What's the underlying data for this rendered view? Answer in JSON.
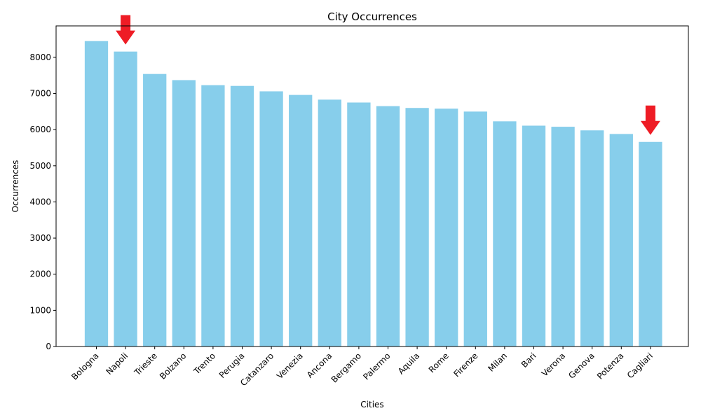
{
  "chart_data": {
    "type": "bar",
    "title": "City Occurrences",
    "xlabel": "Cities",
    "ylabel": "Occurrences",
    "categories": [
      "Bologna",
      "Napoli",
      "Trieste",
      "Bolzano",
      "Trento",
      "Perugia",
      "Catanzaro",
      "Venezia",
      "Ancona",
      "Bergamo",
      "Palermo",
      "Aquila",
      "Rome",
      "Firenze",
      "Milan",
      "Bari",
      "Verona",
      "Genova",
      "Potenza",
      "Cagliari"
    ],
    "values": [
      8450,
      8160,
      7540,
      7370,
      7230,
      7210,
      7060,
      6960,
      6830,
      6750,
      6650,
      6600,
      6580,
      6500,
      6230,
      6110,
      6080,
      5980,
      5880,
      5660
    ],
    "ylim": [
      0,
      8870
    ],
    "yticks": [
      0,
      1000,
      2000,
      3000,
      4000,
      5000,
      6000,
      7000,
      8000
    ],
    "bar_color": "#87ceeb",
    "grid": false,
    "legend": "none",
    "annotations": [
      {
        "type": "arrow",
        "target": "Napoli",
        "color": "#ee1c25"
      },
      {
        "type": "arrow",
        "target": "Cagliari",
        "color": "#ee1c25"
      }
    ]
  }
}
